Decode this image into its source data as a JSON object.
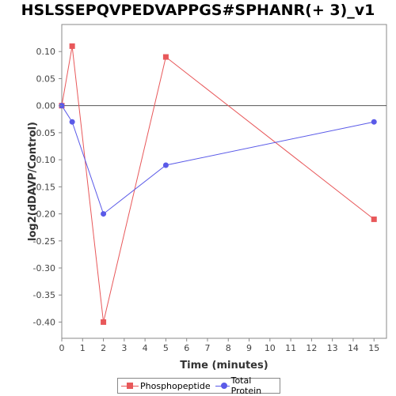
{
  "chart_data": {
    "type": "line",
    "title": "HSLSSEPQVPEDVAPPGS#SPHANR(+ 3)_v1",
    "xlabel": "Time (minutes)",
    "ylabel": "log2(dDAVP/Control)",
    "xlim": [
      0,
      15.6
    ],
    "ylim": [
      -0.43,
      0.15
    ],
    "xticks": [
      0,
      1,
      2,
      3,
      4,
      5,
      6,
      7,
      8,
      9,
      10,
      11,
      12,
      13,
      14,
      15
    ],
    "yticks": [
      0.1,
      0.05,
      0.0,
      -0.05,
      -0.1,
      -0.15,
      -0.2,
      -0.25,
      -0.3,
      -0.35,
      -0.4
    ],
    "ytick_labels": [
      "0.10",
      "0.05",
      "0.00",
      "-0.05",
      "-0.10",
      "-0.15",
      "-0.20",
      "-0.25",
      "-0.30",
      "-0.35",
      "-0.40"
    ],
    "grid": false,
    "zero_line": true,
    "legend_position": "bottom",
    "series": [
      {
        "name": "Phosphopeptide",
        "color": "#e8585a",
        "marker": "square",
        "x": [
          0,
          0.5,
          2,
          5,
          15
        ],
        "y": [
          0.0,
          0.11,
          -0.4,
          0.09,
          -0.21
        ]
      },
      {
        "name": "Total Protein",
        "color": "#5a5ae8",
        "marker": "circle",
        "x": [
          0,
          0.5,
          2,
          5,
          15
        ],
        "y": [
          0.0,
          -0.03,
          -0.2,
          -0.11,
          -0.03
        ]
      }
    ]
  }
}
